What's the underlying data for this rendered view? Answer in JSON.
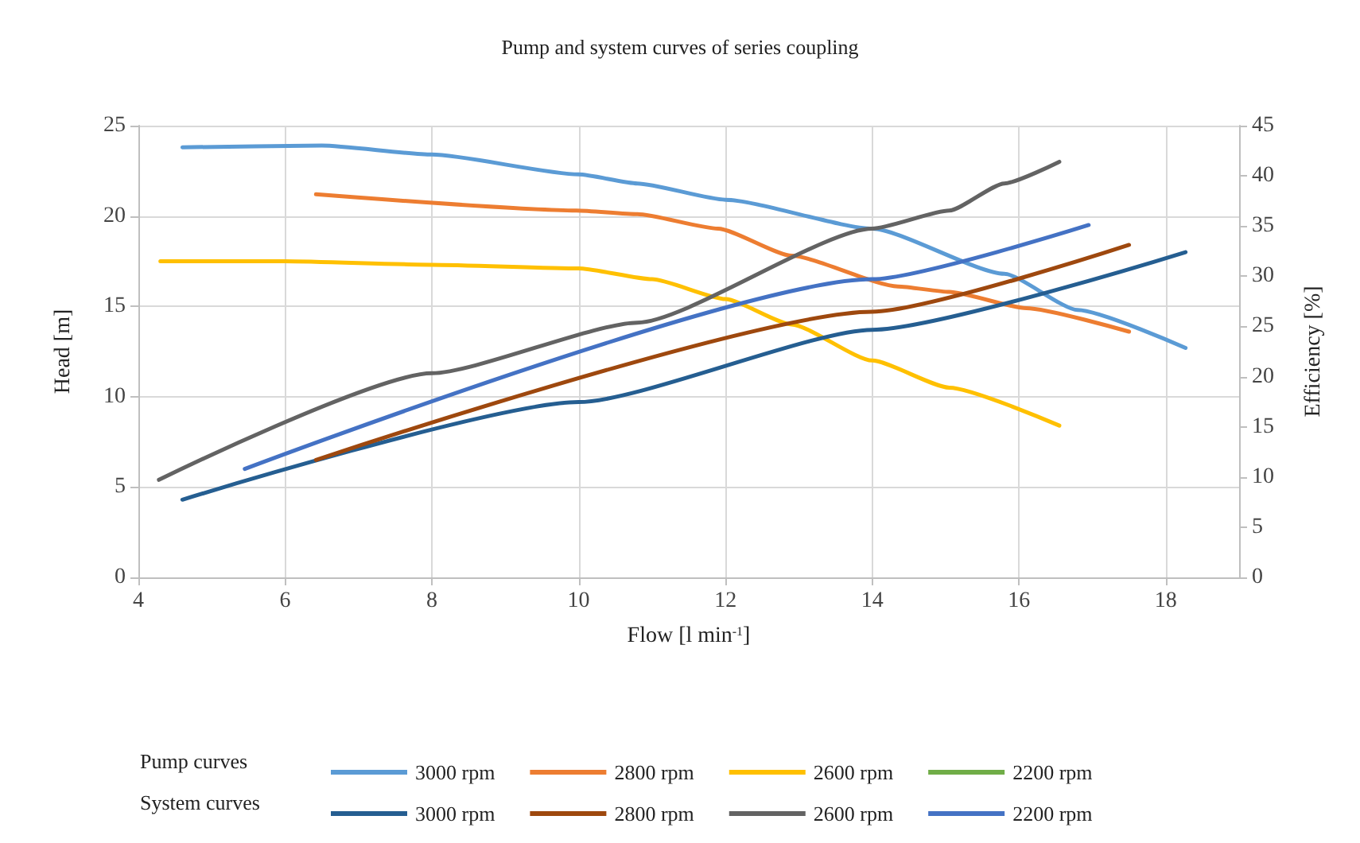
{
  "chart_data": {
    "type": "line",
    "title": "Pump and system curves of series coupling",
    "xlabel": "Flow [l min$^{-1}$]",
    "ylabel": "Head [m]",
    "y2label": "Efficiency [%]",
    "xlim": [
      4,
      19
    ],
    "xticks": [
      4,
      6,
      8,
      10,
      12,
      14,
      16,
      18
    ],
    "ylim": [
      0,
      25
    ],
    "yticks": [
      0,
      5,
      10,
      15,
      20,
      25
    ],
    "y2lim": [
      0,
      45
    ],
    "y2ticks": [
      0,
      5,
      10,
      15,
      20,
      25,
      30,
      35,
      40,
      45
    ],
    "grid": true,
    "legend": "bottom",
    "marker": "none",
    "line_style": "solid",
    "annotations": [
      "Pump curves",
      "System curves"
    ],
    "series": [
      {
        "name": "3000 rpm",
        "color": "#5b9bd5",
        "x": [
          4.6,
          6.5,
          8,
          10,
          10.8,
          12,
          14,
          15.8,
          16.8,
          18.27
        ],
        "values": [
          23.8,
          23.9,
          23.4,
          22.3,
          21.8,
          20.9,
          19.3,
          16.8,
          14.8,
          12.7
        ]
      },
      {
        "name": "2800 rpm",
        "color": "#ed7d31",
        "x": [
          6.42,
          9.97,
          10.8,
          11.9,
          12.9,
          14.35,
          15.05,
          16.1,
          17.5
        ],
        "values": [
          21.2,
          20.3,
          20.1,
          19.3,
          17.8,
          16.1,
          15.8,
          14.9,
          13.6
        ]
      },
      {
        "name": "2600 rpm",
        "color": "#ffc000",
        "x": [
          4.3,
          6,
          8,
          10,
          11,
          12,
          12.9,
          14,
          15.05,
          16.55
        ],
        "values": [
          17.5,
          17.5,
          17.3,
          17.1,
          16.5,
          15.4,
          14,
          12,
          10.5,
          8.4
        ]
      },
      {
        "name": "2200 rpm",
        "color": "#70ad47"
      },
      {
        "name": "3000 rpm",
        "color": "#255e91",
        "x": [
          4.6,
          10,
          14,
          18.27
        ],
        "values": [
          4.3,
          9.7,
          13.7,
          18
        ]
      },
      {
        "name": "2800 rpm",
        "color": "#9e480e",
        "x": [
          6.42,
          14,
          17.5
        ],
        "values": [
          6.5,
          14.7,
          18.4
        ]
      },
      {
        "name": "2600 rpm",
        "color": "#636363",
        "x": [
          4.28,
          8,
          10.8,
          14,
          15.05,
          15.8,
          16.55
        ],
        "values": [
          5.4,
          11.3,
          14.1,
          19.3,
          20.3,
          21.8,
          23
        ]
      },
      {
        "name": "2200 rpm",
        "color": "#4472c4",
        "x": [
          5.45,
          14,
          16.95
        ],
        "values": [
          6,
          16.5,
          19.5
        ]
      }
    ]
  }
}
